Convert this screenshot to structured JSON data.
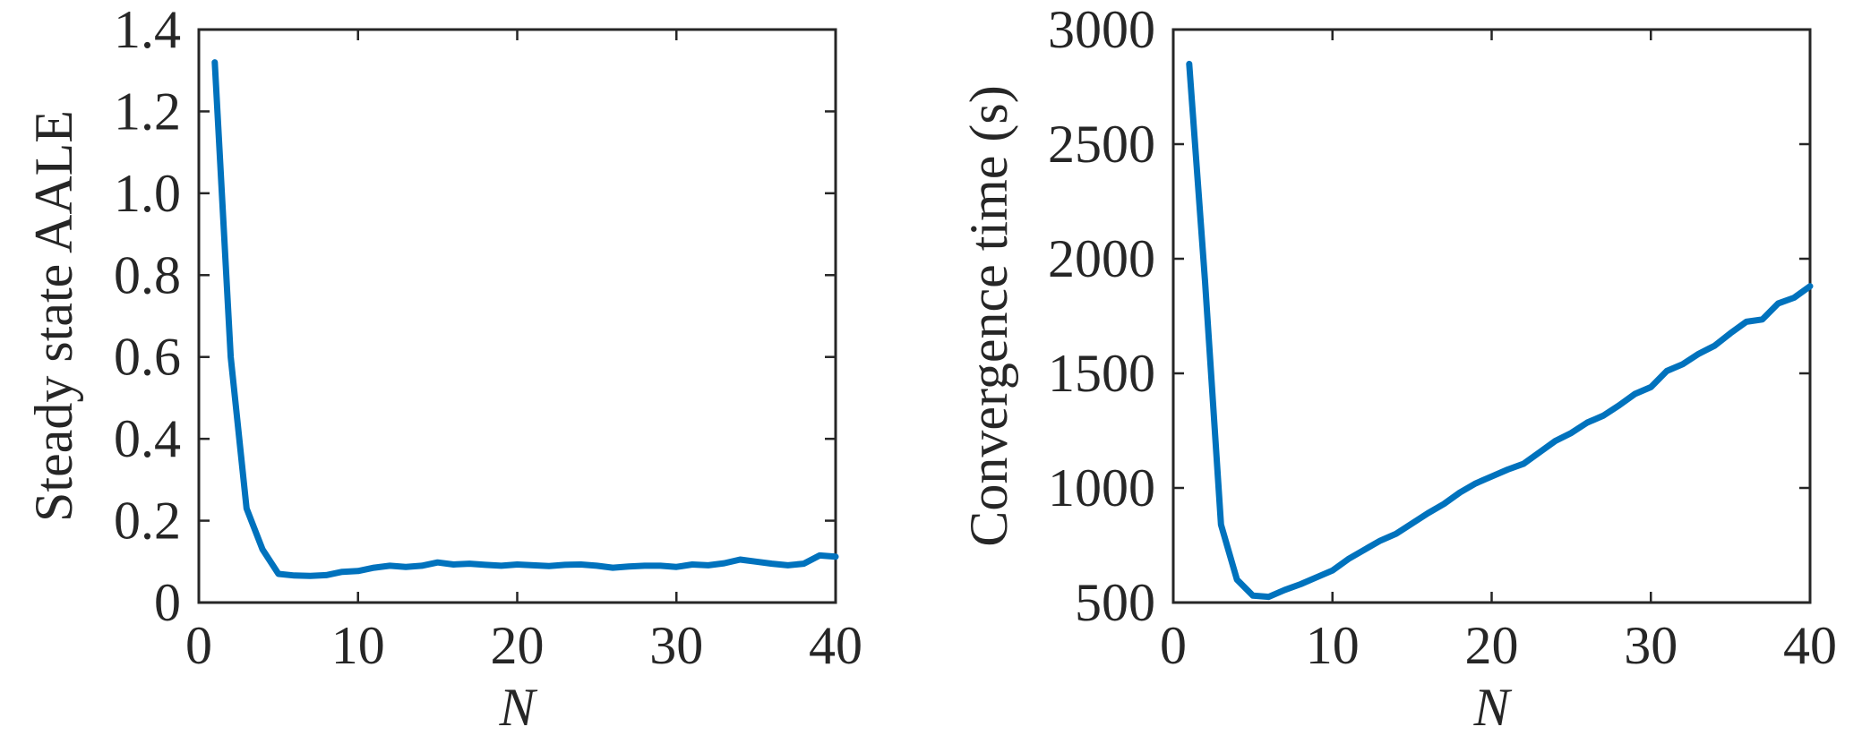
{
  "chart_data": [
    {
      "type": "line",
      "xlabel": "N",
      "ylabel": "Steady state AALE",
      "xlim": [
        0,
        40
      ],
      "ylim": [
        0,
        1.4
      ],
      "xticks": [
        0,
        10,
        20,
        30,
        40
      ],
      "xtick_labels": [
        "0",
        "10",
        "20",
        "30",
        "40"
      ],
      "yticks": [
        0,
        0.2,
        0.4,
        0.6,
        0.8,
        1.0,
        1.2,
        1.4
      ],
      "ytick_labels": [
        "0",
        "0.2",
        "0.4",
        "0.6",
        "0.8",
        "1.0",
        "1.2",
        "1.4"
      ],
      "grid": false,
      "color": "#0072BD",
      "x": [
        1,
        2,
        3,
        4,
        5,
        6,
        7,
        8,
        9,
        10,
        11,
        12,
        13,
        14,
        15,
        16,
        17,
        18,
        19,
        20,
        21,
        22,
        23,
        24,
        25,
        26,
        27,
        28,
        29,
        30,
        31,
        32,
        33,
        34,
        35,
        36,
        37,
        38,
        39,
        40
      ],
      "y": [
        1.32,
        0.6,
        0.23,
        0.13,
        0.07,
        0.066,
        0.065,
        0.067,
        0.075,
        0.077,
        0.085,
        0.09,
        0.087,
        0.09,
        0.098,
        0.093,
        0.095,
        0.092,
        0.09,
        0.093,
        0.091,
        0.089,
        0.092,
        0.093,
        0.09,
        0.085,
        0.088,
        0.09,
        0.09,
        0.087,
        0.093,
        0.091,
        0.096,
        0.105,
        0.1,
        0.095,
        0.091,
        0.095,
        0.115,
        0.112
      ]
    },
    {
      "type": "line",
      "xlabel": "N",
      "ylabel": "Convergence time (s)",
      "xlim": [
        0,
        40
      ],
      "ylim": [
        500,
        3000
      ],
      "xticks": [
        0,
        10,
        20,
        30,
        40
      ],
      "xtick_labels": [
        "0",
        "10",
        "20",
        "30",
        "40"
      ],
      "yticks": [
        500,
        1000,
        1500,
        2000,
        2500,
        3000
      ],
      "ytick_labels": [
        "500",
        "1000",
        "1500",
        "2000",
        "2500",
        "3000"
      ],
      "grid": false,
      "color": "#0072BD",
      "x": [
        1,
        2,
        3,
        4,
        5,
        6,
        7,
        8,
        9,
        10,
        11,
        12,
        13,
        14,
        15,
        16,
        17,
        18,
        19,
        20,
        21,
        22,
        23,
        24,
        25,
        26,
        27,
        28,
        29,
        30,
        31,
        32,
        33,
        34,
        35,
        36,
        37,
        38,
        39,
        40
      ],
      "y": [
        2850,
        1900,
        840,
        600,
        530,
        525,
        555,
        580,
        610,
        640,
        690,
        730,
        770,
        800,
        845,
        890,
        930,
        980,
        1020,
        1050,
        1080,
        1105,
        1155,
        1205,
        1240,
        1285,
        1315,
        1360,
        1410,
        1440,
        1510,
        1540,
        1585,
        1620,
        1675,
        1725,
        1735,
        1805,
        1830,
        1880
      ]
    }
  ]
}
